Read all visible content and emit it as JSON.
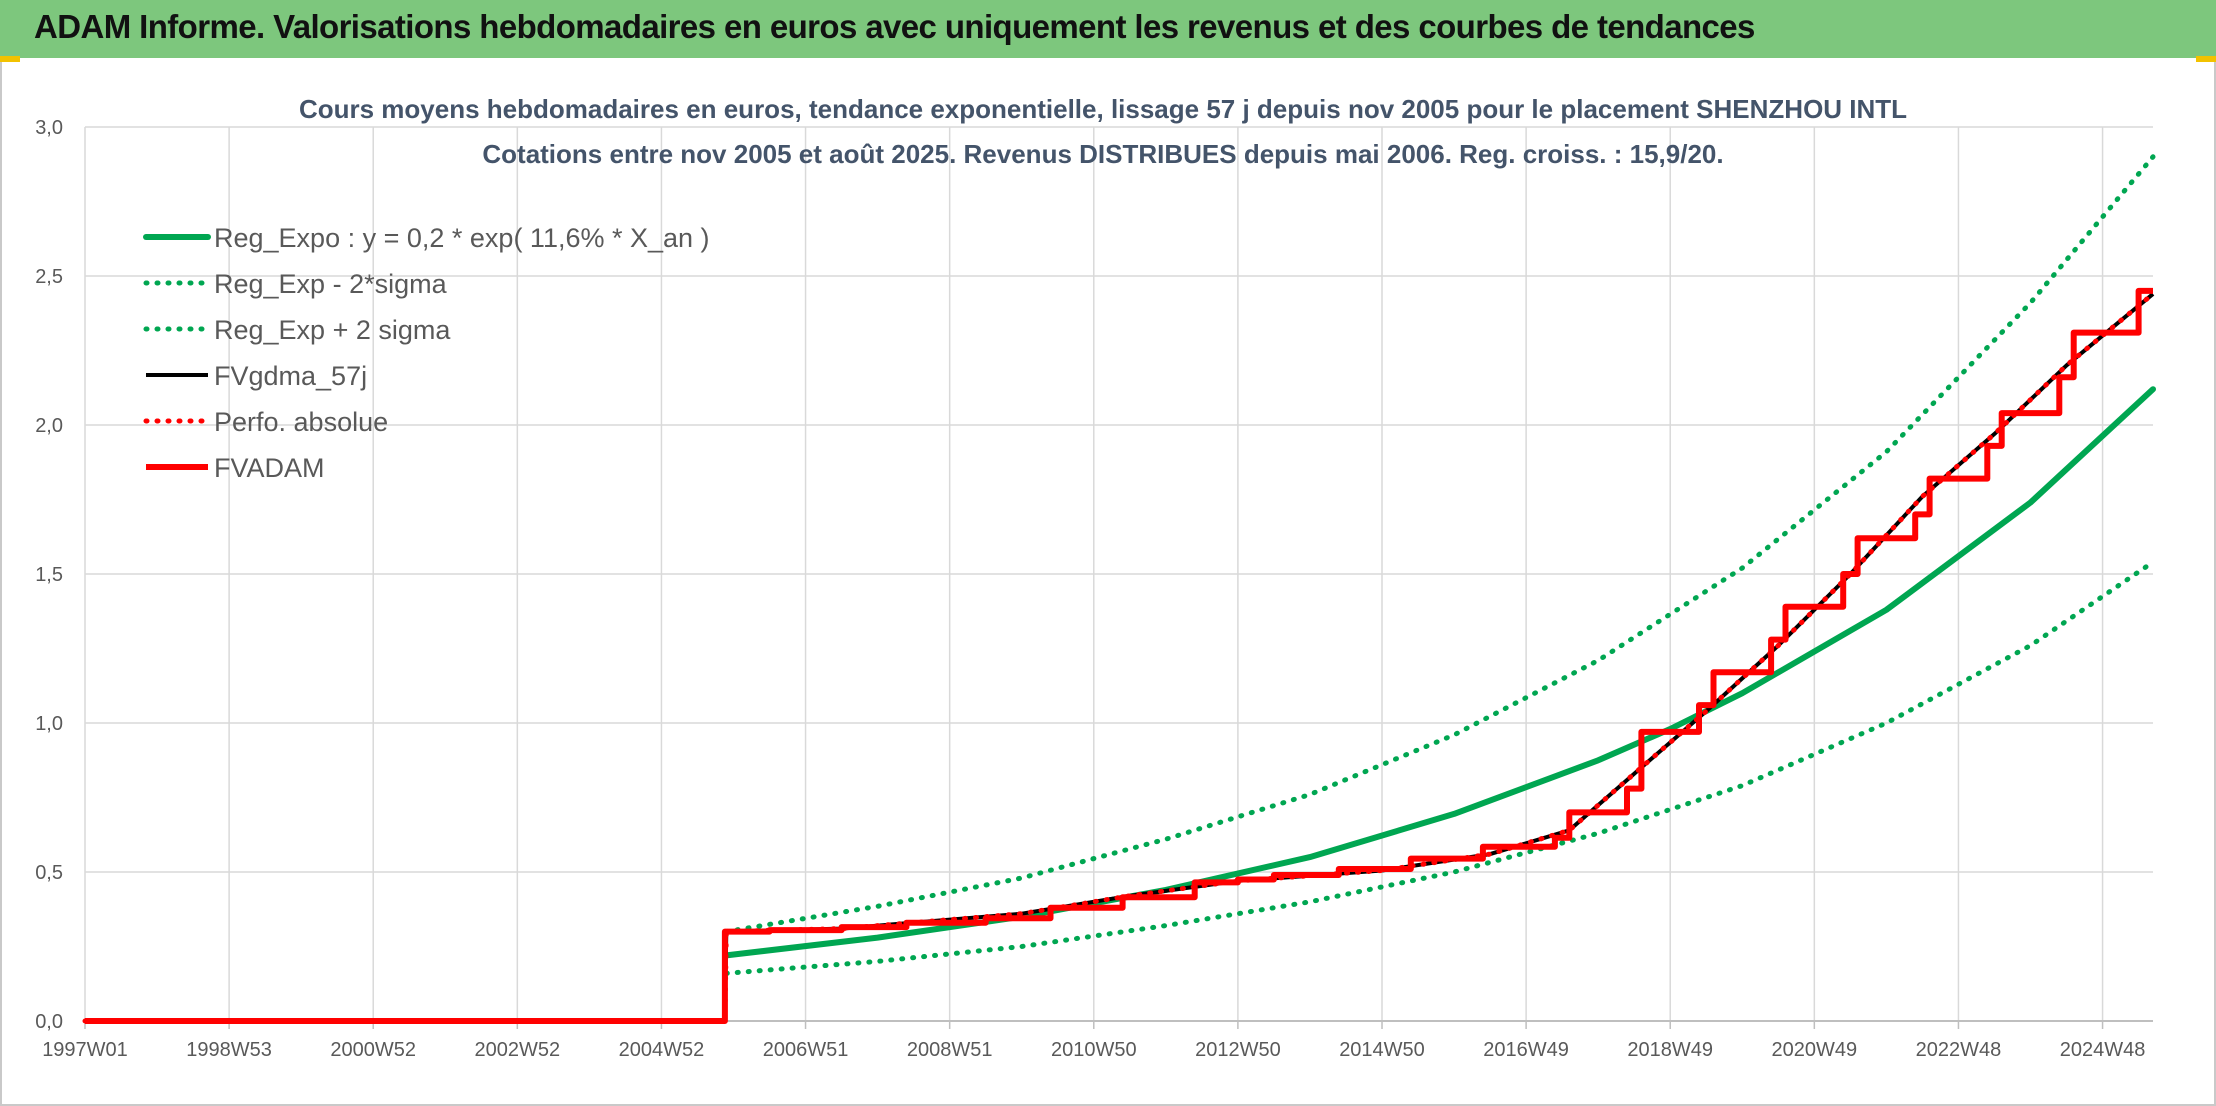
{
  "header": {
    "title": "ADAM Informe. Valorisations hebdomadaires en euros avec uniquement les revenus et des courbes de tendances"
  },
  "chart_data": {
    "type": "line",
    "title_line1": "Cours moyens hebdomadaires en euros, tendance exponentielle, lissage 57 j depuis nov 2005 pour le placement SHENZHOU INTL",
    "title_line2": "Cotations entre nov 2005 et août 2025. Revenus DISTRIBUES depuis mai 2006. Reg. croiss. : 15,9/20.",
    "xlabel": "",
    "ylabel": "",
    "xlim": [
      1997.0,
      2025.7
    ],
    "ylim": [
      0,
      3.0
    ],
    "x_ticks": [
      {
        "label": "1997W01",
        "year": 1997.0
      },
      {
        "label": "1998W53",
        "year": 1999.0
      },
      {
        "label": "2000W52",
        "year": 2001.0
      },
      {
        "label": "2002W52",
        "year": 2003.0
      },
      {
        "label": "2004W52",
        "year": 2005.0
      },
      {
        "label": "2006W51",
        "year": 2007.0
      },
      {
        "label": "2008W51",
        "year": 2009.0
      },
      {
        "label": "2010W50",
        "year": 2011.0
      },
      {
        "label": "2012W50",
        "year": 2013.0
      },
      {
        "label": "2014W50",
        "year": 2015.0
      },
      {
        "label": "2016W49",
        "year": 2017.0
      },
      {
        "label": "2018W49",
        "year": 2019.0
      },
      {
        "label": "2020W49",
        "year": 2021.0
      },
      {
        "label": "2022W48",
        "year": 2023.0
      },
      {
        "label": "2024W48",
        "year": 2025.0
      }
    ],
    "y_ticks": [
      {
        "label": "0,0",
        "value": 0
      },
      {
        "label": "0,5",
        "value": 0.5
      },
      {
        "label": "1,0",
        "value": 1.0
      },
      {
        "label": "1,5",
        "value": 1.5
      },
      {
        "label": "2,0",
        "value": 2.0
      },
      {
        "label": "2,5",
        "value": 2.5
      },
      {
        "label": "3,0",
        "value": 3.0
      }
    ],
    "grid": true,
    "legend_position": "top-left",
    "series": [
      {
        "name": "Reg_Expo : y = 0,2 * exp( 11,6% *  X_an )",
        "color": "#00a651",
        "style": "solid",
        "points": [
          [
            2005.9,
            0.22
          ],
          [
            2008,
            0.28
          ],
          [
            2010,
            0.35
          ],
          [
            2012,
            0.44
          ],
          [
            2014,
            0.55
          ],
          [
            2016,
            0.695
          ],
          [
            2018,
            0.875
          ],
          [
            2019,
            0.98
          ],
          [
            2020,
            1.1
          ],
          [
            2022,
            1.38
          ],
          [
            2024,
            1.74
          ],
          [
            2025.7,
            2.12
          ]
        ]
      },
      {
        "name": "Reg_Exp - 2*sigma",
        "color": "#00a651",
        "style": "dotted",
        "points": [
          [
            2005.9,
            0.16
          ],
          [
            2008,
            0.2
          ],
          [
            2010,
            0.25
          ],
          [
            2012,
            0.32
          ],
          [
            2014,
            0.4
          ],
          [
            2016,
            0.5
          ],
          [
            2018,
            0.63
          ],
          [
            2020,
            0.79
          ],
          [
            2022,
            1.0
          ],
          [
            2024,
            1.26
          ],
          [
            2025.7,
            1.54
          ]
        ]
      },
      {
        "name": "Reg_Exp + 2 sigma",
        "color": "#00a651",
        "style": "dotted",
        "points": [
          [
            2005.9,
            0.3
          ],
          [
            2008,
            0.385
          ],
          [
            2010,
            0.48
          ],
          [
            2012,
            0.61
          ],
          [
            2014,
            0.76
          ],
          [
            2016,
            0.96
          ],
          [
            2018,
            1.21
          ],
          [
            2020,
            1.52
          ],
          [
            2022,
            1.91
          ],
          [
            2024,
            2.41
          ],
          [
            2025.7,
            2.9
          ]
        ]
      },
      {
        "name": "FVgdma_57j",
        "color": "#000000",
        "style": "solid",
        "points": [
          [
            1997.0,
            0
          ],
          [
            2005.88,
            0
          ],
          [
            2005.9,
            0.3
          ],
          [
            2007.5,
            0.31
          ],
          [
            2010,
            0.36
          ],
          [
            2011.5,
            0.42
          ],
          [
            2013,
            0.47
          ],
          [
            2015,
            0.505
          ],
          [
            2016.5,
            0.56
          ],
          [
            2017.6,
            0.64
          ],
          [
            2018.5,
            0.83
          ],
          [
            2019.5,
            1.04
          ],
          [
            2020.5,
            1.26
          ],
          [
            2021.5,
            1.5
          ],
          [
            2022.5,
            1.76
          ],
          [
            2023.5,
            1.97
          ],
          [
            2024.5,
            2.2
          ],
          [
            2025.7,
            2.44
          ]
        ]
      },
      {
        "name": "Perfo. absolue",
        "color": "#ff0000",
        "style": "dotted",
        "points": [
          [
            1997.0,
            0
          ],
          [
            2005.88,
            0
          ],
          [
            2005.9,
            0.3
          ],
          [
            2007.5,
            0.31
          ],
          [
            2010,
            0.36
          ],
          [
            2011.5,
            0.42
          ],
          [
            2013,
            0.47
          ],
          [
            2015,
            0.505
          ],
          [
            2016.5,
            0.56
          ],
          [
            2017.6,
            0.64
          ],
          [
            2018.5,
            0.83
          ],
          [
            2019.5,
            1.04
          ],
          [
            2020.5,
            1.26
          ],
          [
            2021.5,
            1.5
          ],
          [
            2022.5,
            1.76
          ],
          [
            2023.5,
            1.97
          ],
          [
            2024.5,
            2.2
          ],
          [
            2025.7,
            2.44
          ]
        ]
      },
      {
        "name": "FVADAM",
        "color": "#ff0000",
        "style": "solid",
        "points": [
          [
            1997.0,
            0
          ],
          [
            2005.88,
            0
          ],
          [
            2005.88,
            0.3
          ],
          [
            2006.5,
            0.3
          ],
          [
            2006.5,
            0.305
          ],
          [
            2007.5,
            0.305
          ],
          [
            2007.5,
            0.315
          ],
          [
            2008.4,
            0.315
          ],
          [
            2008.4,
            0.33
          ],
          [
            2009.5,
            0.33
          ],
          [
            2009.5,
            0.345
          ],
          [
            2010.4,
            0.345
          ],
          [
            2010.4,
            0.38
          ],
          [
            2011.4,
            0.38
          ],
          [
            2011.4,
            0.415
          ],
          [
            2012.4,
            0.415
          ],
          [
            2012.4,
            0.465
          ],
          [
            2013.0,
            0.465
          ],
          [
            2013.0,
            0.475
          ],
          [
            2013.5,
            0.475
          ],
          [
            2013.5,
            0.49
          ],
          [
            2014.4,
            0.49
          ],
          [
            2014.4,
            0.51
          ],
          [
            2015.4,
            0.51
          ],
          [
            2015.4,
            0.545
          ],
          [
            2016.4,
            0.545
          ],
          [
            2016.4,
            0.585
          ],
          [
            2017.4,
            0.585
          ],
          [
            2017.4,
            0.615
          ],
          [
            2017.6,
            0.615
          ],
          [
            2017.6,
            0.7
          ],
          [
            2018.4,
            0.7
          ],
          [
            2018.4,
            0.78
          ],
          [
            2018.6,
            0.78
          ],
          [
            2018.6,
            0.97
          ],
          [
            2019.4,
            0.97
          ],
          [
            2019.4,
            1.06
          ],
          [
            2019.6,
            1.06
          ],
          [
            2019.6,
            1.17
          ],
          [
            2020.4,
            1.17
          ],
          [
            2020.4,
            1.28
          ],
          [
            2020.6,
            1.28
          ],
          [
            2020.6,
            1.39
          ],
          [
            2021.4,
            1.39
          ],
          [
            2021.4,
            1.5
          ],
          [
            2021.6,
            1.5
          ],
          [
            2021.6,
            1.62
          ],
          [
            2022.4,
            1.62
          ],
          [
            2022.4,
            1.7
          ],
          [
            2022.6,
            1.7
          ],
          [
            2022.6,
            1.82
          ],
          [
            2023.4,
            1.82
          ],
          [
            2023.4,
            1.93
          ],
          [
            2023.6,
            1.93
          ],
          [
            2023.6,
            2.04
          ],
          [
            2024.4,
            2.04
          ],
          [
            2024.4,
            2.16
          ],
          [
            2024.6,
            2.16
          ],
          [
            2024.6,
            2.31
          ],
          [
            2025.5,
            2.31
          ],
          [
            2025.5,
            2.45
          ],
          [
            2025.7,
            2.45
          ]
        ]
      }
    ]
  }
}
